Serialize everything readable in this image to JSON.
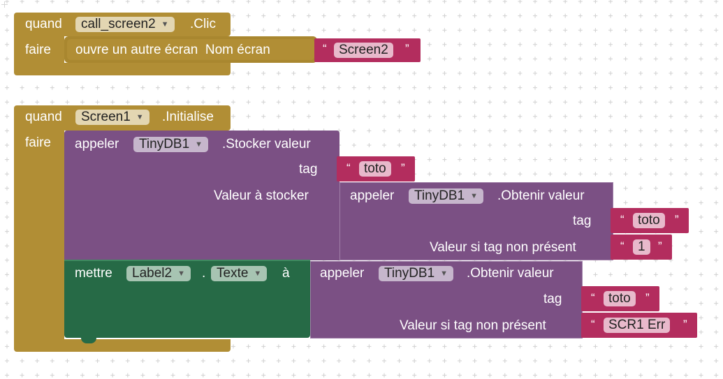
{
  "block1": {
    "quand": "quand",
    "component": "call_screen2",
    "event": ".Clic",
    "faire": "faire",
    "action": "ouvre un autre écran  Nom écran",
    "screen_value": "Screen2"
  },
  "block2": {
    "quand": "quand",
    "component": "Screen1",
    "event": ".Initialise",
    "faire": "faire",
    "store": {
      "call": "appeler",
      "component": "TinyDB1",
      "method": ".Stocker valeur",
      "tag_label": "tag",
      "tag_value": "toto",
      "value_label": "Valeur à stocker",
      "get": {
        "call": "appeler",
        "component": "TinyDB1",
        "method": ".Obtenir valeur",
        "tag_label": "tag",
        "tag_value": "toto",
        "default_label": "Valeur si tag non présent",
        "default_value": "1"
      }
    },
    "set": {
      "mettre": "mettre",
      "component": "Label2",
      "dot": ".",
      "property": "Texte",
      "a": "à",
      "get": {
        "call": "appeler",
        "component": "TinyDB1",
        "method": ".Obtenir valeur",
        "tag_label": "tag",
        "tag_value": "toto",
        "default_label": "Valeur si tag non présent",
        "default_value": "SCR1 Err"
      }
    }
  },
  "colors": {
    "event": "#b18e35",
    "procedure": "#7b5084",
    "setter": "#266a46",
    "text": "#b32d5e"
  },
  "icons": {
    "dropdown": "dropdown-arrow-icon",
    "open_quote": "“",
    "close_quote": "”"
  }
}
